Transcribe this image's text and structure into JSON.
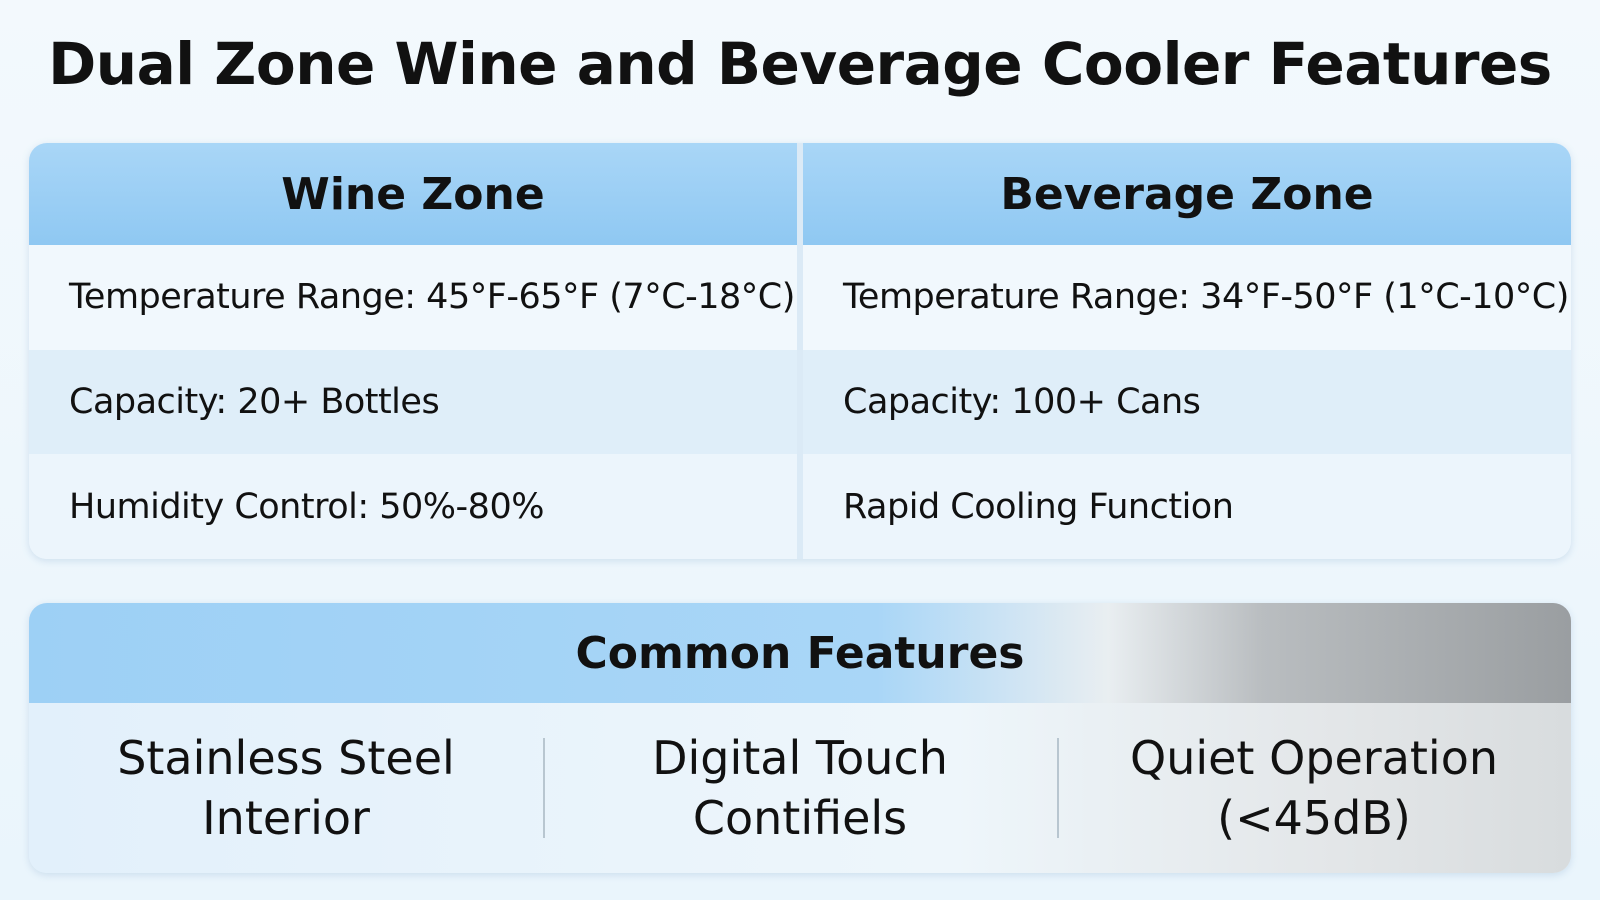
{
  "title": "Dual Zone Wine and Beverage Cooler Features",
  "zones": [
    {
      "heading": "Wine Zone",
      "rows": [
        "Temperature Range: 45°F-65°F (7°C-18°C)",
        "Capacity: 20+ Bottles",
        "Humidity Control: 50%-80%"
      ]
    },
    {
      "heading": "Beverage Zone",
      "rows": [
        "Temperature Range: 34°F-50°F (1°C-10°C)",
        "Capacity: 100+ Cans",
        "Rapid Cooling Function"
      ]
    }
  ],
  "common": {
    "heading": "Common Features",
    "items": [
      "Stainless Steel Interior",
      "Digital Touch Contifiels",
      "Quiet Operation (<45dB)"
    ]
  }
}
